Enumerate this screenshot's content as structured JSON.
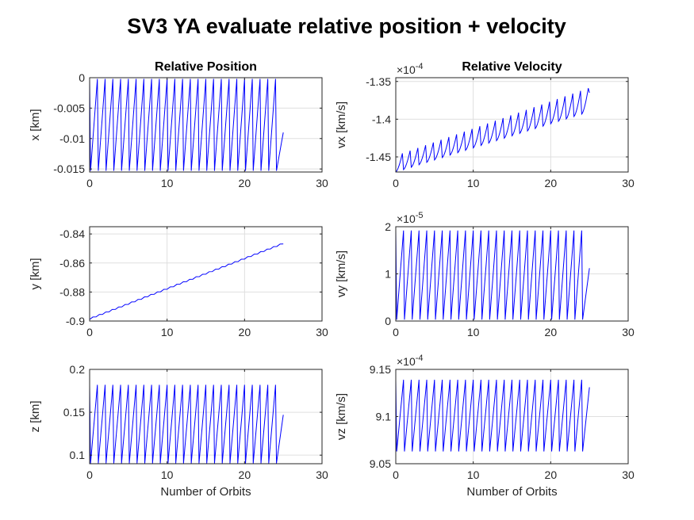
{
  "figure": {
    "title": "SV3 YA evaluate relative position + velocity",
    "colors": {
      "line": "#0000ff",
      "axis": "#262626",
      "grid": "#dfdfdf"
    }
  },
  "chart_data": [
    {
      "id": "x",
      "type": "line",
      "title": "Relative Position",
      "xlabel": "",
      "ylabel": "x [km]",
      "xlim": [
        0,
        30
      ],
      "ylim": [
        -0.0155,
        0
      ],
      "xticks": [
        0,
        10,
        20,
        30
      ],
      "xticklabels": [
        "0",
        "10",
        "20",
        "30"
      ],
      "yticks": [
        0,
        -0.005,
        -0.01,
        -0.015
      ],
      "yticklabels": [
        "0",
        "-0.005",
        "-0.01",
        "-0.015"
      ],
      "exponent": "",
      "grid": true,
      "series": [
        {
          "pattern": "sawtooth_rise",
          "x_end": 25,
          "cycles": 25,
          "low": -0.0153,
          "high": -0.0002,
          "end_value": -0.009
        }
      ]
    },
    {
      "id": "vx",
      "type": "line",
      "title": "Relative Velocity",
      "xlabel": "",
      "ylabel": "vx [km/s]",
      "xlim": [
        0,
        30
      ],
      "ylim": [
        -1.47,
        -1.345
      ],
      "xticks": [
        0,
        10,
        20,
        30
      ],
      "xticklabels": [
        "0",
        "10",
        "20",
        "30"
      ],
      "yticks": [
        -1.35,
        -1.4,
        -1.45
      ],
      "yticklabels": [
        "-1.35",
        "-1.4",
        "-1.45"
      ],
      "exponent": "-4",
      "grid": true,
      "series": [
        {
          "pattern": "sawtooth_trend",
          "x_end": 25,
          "cycles": 25,
          "base_start": -1.47,
          "base_end": -1.39,
          "amp_start": 0.022,
          "amp_end": 0.032,
          "end_value": -1.365
        }
      ]
    },
    {
      "id": "y",
      "type": "line",
      "title": "",
      "xlabel": "",
      "ylabel": "y [km]",
      "xlim": [
        0,
        30
      ],
      "ylim": [
        -0.9,
        -0.835
      ],
      "xticks": [
        0,
        10,
        20,
        30
      ],
      "xticklabels": [
        "0",
        "10",
        "20",
        "30"
      ],
      "yticks": [
        -0.84,
        -0.86,
        -0.88,
        -0.9
      ],
      "yticklabels": [
        "-0.84",
        "-0.86",
        "-0.88",
        "-0.9"
      ],
      "exponent": "",
      "grid": true,
      "series": [
        {
          "pattern": "linear",
          "x_end": 25,
          "start": -0.8985,
          "end": -0.8465
        }
      ]
    },
    {
      "id": "vy",
      "type": "line",
      "title": "",
      "xlabel": "",
      "ylabel": "vy [km/s]",
      "xlim": [
        0,
        30
      ],
      "ylim": [
        0,
        2
      ],
      "xticks": [
        0,
        10,
        20,
        30
      ],
      "xticklabels": [
        "0",
        "10",
        "20",
        "30"
      ],
      "yticks": [
        2,
        1,
        0
      ],
      "yticklabels": [
        "2",
        "1",
        "0"
      ],
      "exponent": "-5",
      "grid": true,
      "series": [
        {
          "pattern": "sawtooth_rise",
          "x_end": 25,
          "cycles": 25,
          "low": 0.03,
          "high": 1.92,
          "end_value": 1.12
        }
      ]
    },
    {
      "id": "z",
      "type": "line",
      "title": "",
      "xlabel": "Number of Orbits",
      "ylabel": "z [km]",
      "xlim": [
        0,
        30
      ],
      "ylim": [
        0.09,
        0.2
      ],
      "xticks": [
        0,
        10,
        20,
        30
      ],
      "xticklabels": [
        "0",
        "10",
        "20",
        "30"
      ],
      "yticks": [
        0.2,
        0.15,
        0.1
      ],
      "yticklabels": [
        "0.2",
        "0.15",
        "0.1"
      ],
      "exponent": "",
      "grid": true,
      "series": [
        {
          "pattern": "sawtooth_rise",
          "x_end": 25,
          "cycles": 25,
          "low": 0.0905,
          "high": 0.182,
          "end_value": 0.147
        }
      ]
    },
    {
      "id": "vz",
      "type": "line",
      "title": "",
      "xlabel": "Number of Orbits",
      "ylabel": "vz [km/s]",
      "xlim": [
        0,
        30
      ],
      "ylim": [
        9.05,
        9.15
      ],
      "xticks": [
        0,
        10,
        20,
        30
      ],
      "xticklabels": [
        "0",
        "10",
        "20",
        "30"
      ],
      "yticks": [
        9.15,
        9.1,
        9.05
      ],
      "yticklabels": [
        "9.15",
        "9.1",
        "9.05"
      ],
      "exponent": "-4",
      "grid": true,
      "series": [
        {
          "pattern": "sawtooth_rise",
          "x_end": 25,
          "cycles": 25,
          "low": 9.063,
          "high": 9.139,
          "end_value": 9.131
        }
      ]
    }
  ]
}
